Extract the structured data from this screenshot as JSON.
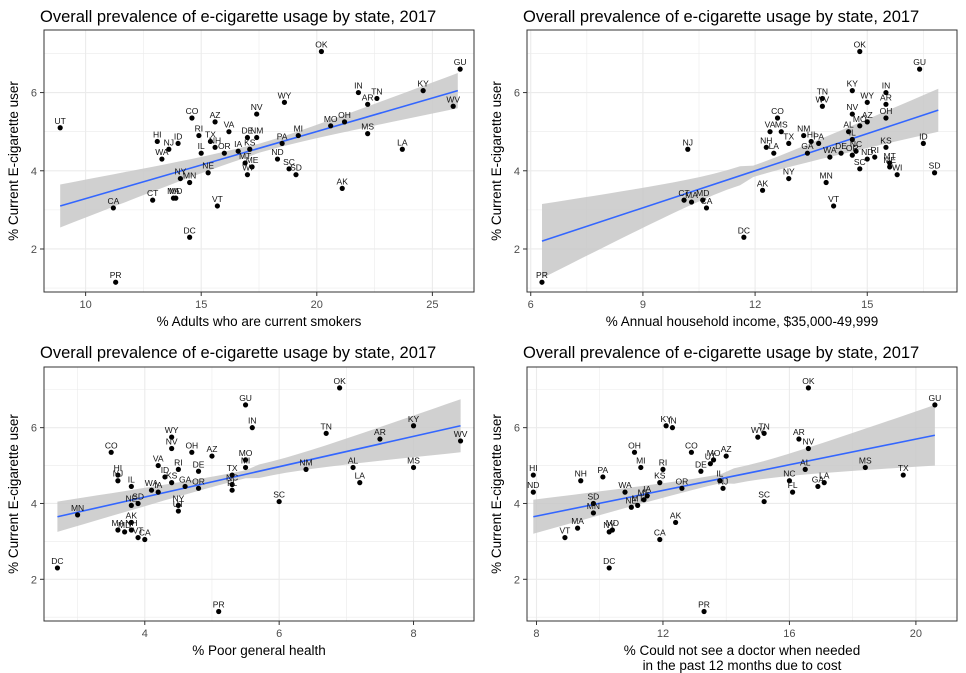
{
  "colors": {
    "point": "#000000",
    "trend": "#3366ff",
    "band": "#c8c8c8",
    "grid": "#ebebeb",
    "frame": "#333333"
  },
  "chart_data": [
    {
      "type": "scatter",
      "title": "Overall prevalence of e-cigarette usage by state, 2017",
      "xlabel": "% Adults who are current smokers",
      "ylabel": "% Current E-cigarette user",
      "xlim": [
        8.2,
        26.8
      ],
      "ylim": [
        0.9,
        7.6
      ],
      "xticks": [
        10,
        15,
        20,
        25
      ],
      "yticks": [
        2,
        4,
        6
      ],
      "grid": true,
      "trend": [
        [
          8.9,
          3.1
        ],
        [
          26.1,
          6.05
        ]
      ],
      "band": [
        0.55,
        0.45
      ],
      "points": [
        {
          "label": "OK",
          "x": 20.2,
          "y": 7.05
        },
        {
          "label": "GU",
          "x": 26.2,
          "y": 6.6
        },
        {
          "label": "IN",
          "x": 21.8,
          "y": 6.0
        },
        {
          "label": "KY",
          "x": 24.6,
          "y": 6.05
        },
        {
          "label": "TN",
          "x": 22.6,
          "y": 5.85
        },
        {
          "label": "AR",
          "x": 22.2,
          "y": 5.7
        },
        {
          "label": "WV",
          "x": 25.9,
          "y": 5.65
        },
        {
          "label": "WY",
          "x": 18.6,
          "y": 5.75
        },
        {
          "label": "NV",
          "x": 17.4,
          "y": 5.45
        },
        {
          "label": "CO",
          "x": 14.6,
          "y": 5.35
        },
        {
          "label": "AZ",
          "x": 15.6,
          "y": 5.25
        },
        {
          "label": "UT",
          "x": 8.9,
          "y": 5.1
        },
        {
          "label": "OH",
          "x": 21.2,
          "y": 5.25
        },
        {
          "label": "MO",
          "x": 20.6,
          "y": 5.15
        },
        {
          "label": "MS",
          "x": 22.2,
          "y": 4.95
        },
        {
          "label": "MI",
          "x": 19.2,
          "y": 4.9
        },
        {
          "label": "VA",
          "x": 16.2,
          "y": 5.0
        },
        {
          "label": "RI",
          "x": 14.9,
          "y": 4.9
        },
        {
          "label": "DE",
          "x": 17.0,
          "y": 4.85
        },
        {
          "label": "NM",
          "x": 17.4,
          "y": 4.85
        },
        {
          "label": "HI",
          "x": 13.1,
          "y": 4.75
        },
        {
          "label": "ID",
          "x": 14.0,
          "y": 4.7
        },
        {
          "label": "TX",
          "x": 15.4,
          "y": 4.75
        },
        {
          "label": "PA",
          "x": 18.5,
          "y": 4.7
        },
        {
          "label": "NJ",
          "x": 13.6,
          "y": 4.55
        },
        {
          "label": "IL",
          "x": 15.0,
          "y": 4.45
        },
        {
          "label": "WA",
          "x": 13.3,
          "y": 4.3
        },
        {
          "label": "OR",
          "x": 16.0,
          "y": 4.45
        },
        {
          "label": "NH",
          "x": 15.6,
          "y": 4.6
        },
        {
          "label": "IA",
          "x": 16.6,
          "y": 4.5
        },
        {
          "label": "KS",
          "x": 17.1,
          "y": 4.55
        },
        {
          "label": "LA",
          "x": 23.7,
          "y": 4.55
        },
        {
          "label": "ND",
          "x": 18.3,
          "y": 4.3
        },
        {
          "label": "MT",
          "x": 16.9,
          "y": 4.2
        },
        {
          "label": "ME",
          "x": 17.2,
          "y": 4.1
        },
        {
          "label": "SC",
          "x": 18.8,
          "y": 4.05
        },
        {
          "label": "SD",
          "x": 19.1,
          "y": 3.9
        },
        {
          "label": "NE",
          "x": 15.3,
          "y": 3.95
        },
        {
          "label": "WI",
          "x": 17.0,
          "y": 3.9
        },
        {
          "label": "NY",
          "x": 14.1,
          "y": 3.8
        },
        {
          "label": "MN",
          "x": 14.5,
          "y": 3.7
        },
        {
          "label": "AK",
          "x": 21.1,
          "y": 3.55
        },
        {
          "label": "CT",
          "x": 12.9,
          "y": 3.25
        },
        {
          "label": "MA",
          "x": 13.8,
          "y": 3.3
        },
        {
          "label": "MD",
          "x": 13.9,
          "y": 3.3
        },
        {
          "label": "CA",
          "x": 11.2,
          "y": 3.05
        },
        {
          "label": "VT",
          "x": 15.7,
          "y": 3.1
        },
        {
          "label": "DC",
          "x": 14.5,
          "y": 2.3
        },
        {
          "label": "PR",
          "x": 11.3,
          "y": 1.15
        }
      ]
    },
    {
      "type": "scatter",
      "title": "Overall prevalence of e-cigarette usage by state, 2017",
      "xlabel": "% Annual household income, $35,000-49,999",
      "ylabel": "% Current E-cigarette user",
      "xlim": [
        5.9,
        17.4
      ],
      "ylim": [
        0.9,
        7.6
      ],
      "xticks": [
        6,
        9,
        12,
        15
      ],
      "yticks": [
        2,
        4,
        6
      ],
      "grid": true,
      "trend": [
        [
          6.3,
          2.2
        ],
        [
          16.9,
          5.55
        ]
      ],
      "band": [
        0.95,
        0.55
      ],
      "points": [
        {
          "label": "OK",
          "x": 14.8,
          "y": 7.05
        },
        {
          "label": "GU",
          "x": 16.4,
          "y": 6.6
        },
        {
          "label": "KY",
          "x": 14.6,
          "y": 6.05
        },
        {
          "label": "IN",
          "x": 15.5,
          "y": 6.0
        },
        {
          "label": "TN",
          "x": 13.8,
          "y": 5.85
        },
        {
          "label": "WY",
          "x": 15.0,
          "y": 5.75
        },
        {
          "label": "AR",
          "x": 15.5,
          "y": 5.7
        },
        {
          "label": "WV",
          "x": 13.8,
          "y": 5.65
        },
        {
          "label": "NV",
          "x": 14.6,
          "y": 5.45
        },
        {
          "label": "OH",
          "x": 15.5,
          "y": 5.35
        },
        {
          "label": "CO",
          "x": 12.6,
          "y": 5.35
        },
        {
          "label": "AZ",
          "x": 15.0,
          "y": 5.25
        },
        {
          "label": "MO",
          "x": 14.8,
          "y": 5.15
        },
        {
          "label": "VA",
          "x": 12.4,
          "y": 5.0
        },
        {
          "label": "MS",
          "x": 12.7,
          "y": 5.0
        },
        {
          "label": "NM",
          "x": 13.3,
          "y": 4.9
        },
        {
          "label": "AL",
          "x": 14.5,
          "y": 5.0
        },
        {
          "label": "IL",
          "x": 14.6,
          "y": 4.8
        },
        {
          "label": "HI",
          "x": 13.5,
          "y": 4.75
        },
        {
          "label": "PA",
          "x": 13.7,
          "y": 4.7
        },
        {
          "label": "KS",
          "x": 15.5,
          "y": 4.6
        },
        {
          "label": "ID",
          "x": 16.5,
          "y": 4.7
        },
        {
          "label": "NJ",
          "x": 10.2,
          "y": 4.55
        },
        {
          "label": "NH",
          "x": 12.3,
          "y": 4.6
        },
        {
          "label": "LA",
          "x": 12.5,
          "y": 4.45
        },
        {
          "label": "TX",
          "x": 12.9,
          "y": 4.7
        },
        {
          "label": "GA",
          "x": 13.4,
          "y": 4.45
        },
        {
          "label": "NC",
          "x": 14.7,
          "y": 4.5
        },
        {
          "label": "WA",
          "x": 14.0,
          "y": 4.35
        },
        {
          "label": "DE",
          "x": 14.3,
          "y": 4.45
        },
        {
          "label": "OR",
          "x": 14.6,
          "y": 4.4
        },
        {
          "label": "SC",
          "x": 14.8,
          "y": 4.05
        },
        {
          "label": "NY",
          "x": 12.9,
          "y": 3.8
        },
        {
          "label": "MN",
          "x": 13.9,
          "y": 3.7
        },
        {
          "label": "ND",
          "x": 15.0,
          "y": 4.3
        },
        {
          "label": "MT",
          "x": 15.6,
          "y": 4.2
        },
        {
          "label": "ME",
          "x": 15.6,
          "y": 4.1
        },
        {
          "label": "WI",
          "x": 15.8,
          "y": 3.9
        },
        {
          "label": "SD",
          "x": 16.8,
          "y": 3.95
        },
        {
          "label": "RI",
          "x": 15.2,
          "y": 4.35
        },
        {
          "label": "AK",
          "x": 12.2,
          "y": 3.5
        },
        {
          "label": "CT",
          "x": 10.1,
          "y": 3.25
        },
        {
          "label": "MA",
          "x": 10.3,
          "y": 3.2
        },
        {
          "label": "MD",
          "x": 10.6,
          "y": 3.25
        },
        {
          "label": "CA",
          "x": 10.7,
          "y": 3.05
        },
        {
          "label": "VT",
          "x": 14.1,
          "y": 3.1
        },
        {
          "label": "DC",
          "x": 11.7,
          "y": 2.3
        },
        {
          "label": "PR",
          "x": 6.3,
          "y": 1.15
        }
      ]
    },
    {
      "type": "scatter",
      "title": "Overall prevalence of e-cigarette usage by state, 2017",
      "xlabel": "% Poor general health",
      "ylabel": "% Current E-cigarette user",
      "xlim": [
        2.5,
        8.9
      ],
      "ylim": [
        0.9,
        7.6
      ],
      "xticks": [
        4,
        6,
        8
      ],
      "yticks": [
        2,
        4,
        6
      ],
      "grid": true,
      "trend": [
        [
          2.7,
          3.65
        ],
        [
          8.7,
          6.05
        ]
      ],
      "band": [
        0.4,
        0.7
      ],
      "points": [
        {
          "label": "OK",
          "x": 6.9,
          "y": 7.05
        },
        {
          "label": "GU",
          "x": 5.5,
          "y": 6.6
        },
        {
          "label": "IN",
          "x": 5.6,
          "y": 6.0
        },
        {
          "label": "KY",
          "x": 8.0,
          "y": 6.05
        },
        {
          "label": "TN",
          "x": 6.7,
          "y": 5.85
        },
        {
          "label": "WY",
          "x": 4.4,
          "y": 5.75
        },
        {
          "label": "AR",
          "x": 7.5,
          "y": 5.7
        },
        {
          "label": "WV",
          "x": 8.7,
          "y": 5.65
        },
        {
          "label": "NV",
          "x": 4.4,
          "y": 5.45
        },
        {
          "label": "CO",
          "x": 3.5,
          "y": 5.35
        },
        {
          "label": "OH",
          "x": 4.7,
          "y": 5.35
        },
        {
          "label": "AZ",
          "x": 5.0,
          "y": 5.25
        },
        {
          "label": "MO",
          "x": 5.5,
          "y": 5.15
        },
        {
          "label": "VA",
          "x": 4.2,
          "y": 5.0
        },
        {
          "label": "MI",
          "x": 5.5,
          "y": 4.95
        },
        {
          "label": "RI",
          "x": 4.5,
          "y": 4.9
        },
        {
          "label": "DE",
          "x": 4.8,
          "y": 4.85
        },
        {
          "label": "NM",
          "x": 6.4,
          "y": 4.9
        },
        {
          "label": "AL",
          "x": 7.1,
          "y": 4.95
        },
        {
          "label": "MS",
          "x": 8.0,
          "y": 4.95
        },
        {
          "label": "HI",
          "x": 3.6,
          "y": 4.75
        },
        {
          "label": "NJ",
          "x": 3.6,
          "y": 4.6
        },
        {
          "label": "TX",
          "x": 5.3,
          "y": 4.75
        },
        {
          "label": "LA",
          "x": 7.2,
          "y": 4.55
        },
        {
          "label": "IL",
          "x": 3.8,
          "y": 4.45
        },
        {
          "label": "ID",
          "x": 4.3,
          "y": 4.7
        },
        {
          "label": "KS",
          "x": 4.4,
          "y": 4.55
        },
        {
          "label": "GA",
          "x": 4.6,
          "y": 4.45
        },
        {
          "label": "OR",
          "x": 4.8,
          "y": 4.4
        },
        {
          "label": "NC",
          "x": 5.3,
          "y": 4.5
        },
        {
          "label": "FL",
          "x": 5.3,
          "y": 4.35
        },
        {
          "label": "IA",
          "x": 4.2,
          "y": 4.3
        },
        {
          "label": "WA",
          "x": 4.1,
          "y": 4.35
        },
        {
          "label": "NE",
          "x": 3.8,
          "y": 3.95
        },
        {
          "label": "SD",
          "x": 3.9,
          "y": 4.0
        },
        {
          "label": "NY",
          "x": 4.5,
          "y": 3.95
        },
        {
          "label": "UT",
          "x": 4.5,
          "y": 3.8
        },
        {
          "label": "SC",
          "x": 6.0,
          "y": 4.05
        },
        {
          "label": "MN",
          "x": 3.0,
          "y": 3.7
        },
        {
          "label": "AK",
          "x": 3.8,
          "y": 3.5
        },
        {
          "label": "MA",
          "x": 3.6,
          "y": 3.3
        },
        {
          "label": "NH",
          "x": 3.8,
          "y": 3.3
        },
        {
          "label": "MD",
          "x": 3.7,
          "y": 3.25
        },
        {
          "label": "VT",
          "x": 3.9,
          "y": 3.1
        },
        {
          "label": "CA",
          "x": 4.0,
          "y": 3.05
        },
        {
          "label": "DC",
          "x": 2.7,
          "y": 2.3
        },
        {
          "label": "PR",
          "x": 5.1,
          "y": 1.15
        }
      ]
    },
    {
      "type": "scatter",
      "title": "Overall prevalence of e-cigarette usage by state, 2017",
      "xlabel": "% Could not see a doctor when needed\nin the past 12 months due to cost",
      "ylabel": "% Current E-cigarette user",
      "xlim": [
        7.7,
        21.3
      ],
      "ylim": [
        0.9,
        7.6
      ],
      "xticks": [
        8,
        12,
        16,
        20
      ],
      "yticks": [
        2,
        4,
        6
      ],
      "grid": true,
      "trend": [
        [
          7.9,
          3.65
        ],
        [
          20.6,
          5.8
        ]
      ],
      "band": [
        0.45,
        0.8
      ],
      "points": [
        {
          "label": "OK",
          "x": 16.6,
          "y": 7.05
        },
        {
          "label": "GU",
          "x": 20.6,
          "y": 6.6
        },
        {
          "label": "KY",
          "x": 12.1,
          "y": 6.05
        },
        {
          "label": "IN",
          "x": 12.3,
          "y": 6.0
        },
        {
          "label": "TN",
          "x": 15.2,
          "y": 5.85
        },
        {
          "label": "WV",
          "x": 15.0,
          "y": 5.75
        },
        {
          "label": "AR",
          "x": 16.3,
          "y": 5.7
        },
        {
          "label": "NV",
          "x": 16.6,
          "y": 5.45
        },
        {
          "label": "OH",
          "x": 11.1,
          "y": 5.35
        },
        {
          "label": "CO",
          "x": 12.9,
          "y": 5.35
        },
        {
          "label": "AZ",
          "x": 14.0,
          "y": 5.25
        },
        {
          "label": "MO",
          "x": 13.6,
          "y": 5.15
        },
        {
          "label": "UT",
          "x": 13.5,
          "y": 5.05
        },
        {
          "label": "MI",
          "x": 11.3,
          "y": 4.95
        },
        {
          "label": "RI",
          "x": 12.0,
          "y": 4.9
        },
        {
          "label": "DE",
          "x": 13.2,
          "y": 4.85
        },
        {
          "label": "MS",
          "x": 18.4,
          "y": 4.95
        },
        {
          "label": "HI",
          "x": 7.9,
          "y": 4.75
        },
        {
          "label": "NH",
          "x": 9.4,
          "y": 4.6
        },
        {
          "label": "PA",
          "x": 10.1,
          "y": 4.7
        },
        {
          "label": "TX",
          "x": 19.6,
          "y": 4.75
        },
        {
          "label": "AL",
          "x": 16.5,
          "y": 4.9
        },
        {
          "label": "NC",
          "x": 16.0,
          "y": 4.6
        },
        {
          "label": "IL",
          "x": 13.8,
          "y": 4.6
        },
        {
          "label": "KS",
          "x": 11.9,
          "y": 4.55
        },
        {
          "label": "FL",
          "x": 16.1,
          "y": 4.3
        },
        {
          "label": "GA",
          "x": 16.9,
          "y": 4.45
        },
        {
          "label": "LA",
          "x": 17.1,
          "y": 4.55
        },
        {
          "label": "ND",
          "x": 7.9,
          "y": 4.3
        },
        {
          "label": "OR",
          "x": 12.6,
          "y": 4.4
        },
        {
          "label": "NJ",
          "x": 13.9,
          "y": 4.4
        },
        {
          "label": "WA",
          "x": 10.8,
          "y": 4.3
        },
        {
          "label": "IA",
          "x": 11.5,
          "y": 4.2
        },
        {
          "label": "ME",
          "x": 11.4,
          "y": 4.1
        },
        {
          "label": "MT",
          "x": 11.2,
          "y": 3.95
        },
        {
          "label": "NE",
          "x": 11.0,
          "y": 3.9
        },
        {
          "label": "SD",
          "x": 9.8,
          "y": 4.0
        },
        {
          "label": "SC",
          "x": 15.2,
          "y": 4.05
        },
        {
          "label": "AK",
          "x": 12.4,
          "y": 3.5
        },
        {
          "label": "MN",
          "x": 9.8,
          "y": 3.75
        },
        {
          "label": "MA",
          "x": 9.3,
          "y": 3.35
        },
        {
          "label": "MD",
          "x": 10.4,
          "y": 3.3
        },
        {
          "label": "NY",
          "x": 10.3,
          "y": 3.25
        },
        {
          "label": "VT",
          "x": 8.9,
          "y": 3.1
        },
        {
          "label": "CA",
          "x": 11.9,
          "y": 3.05
        },
        {
          "label": "DC",
          "x": 10.3,
          "y": 2.3
        },
        {
          "label": "PR",
          "x": 13.3,
          "y": 1.15
        }
      ]
    }
  ]
}
